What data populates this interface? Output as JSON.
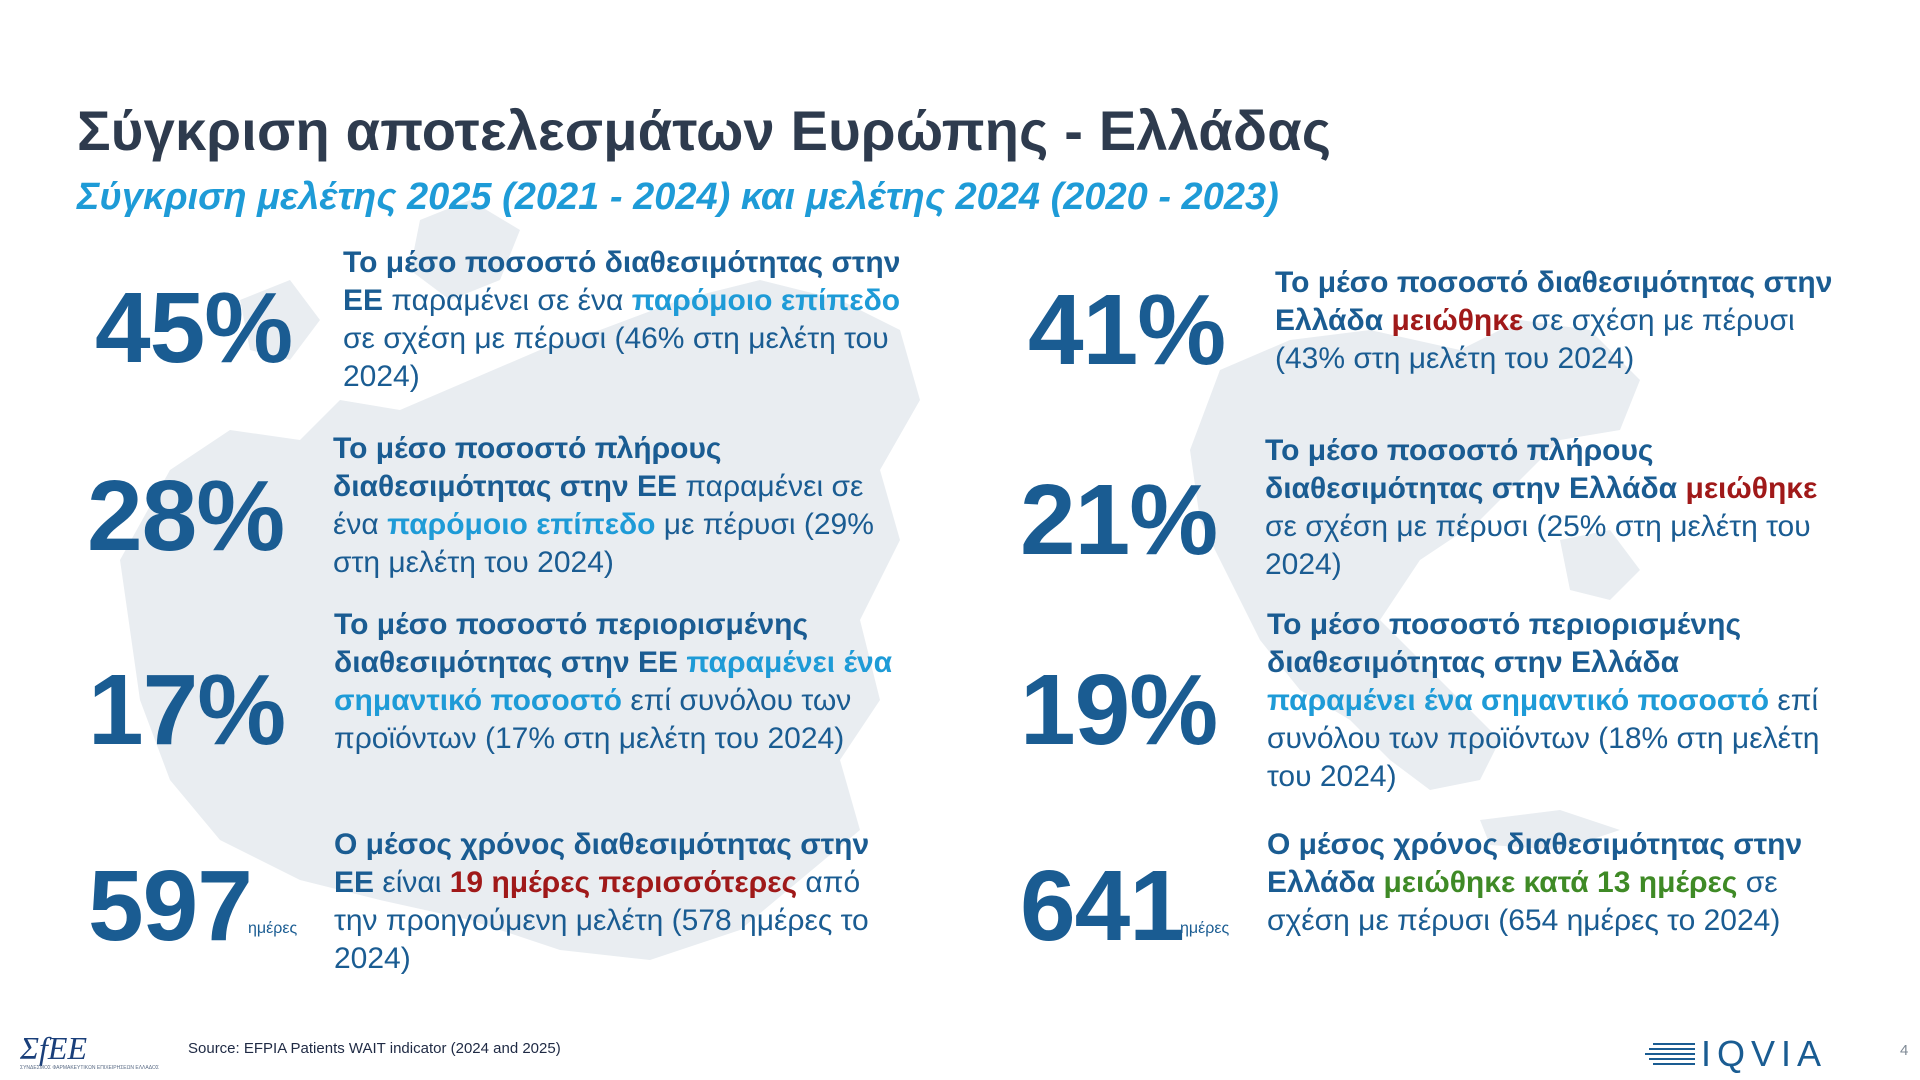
{
  "slide": {
    "title": "Σύγκριση αποτελεσμάτων Ευρώπης - Ελλάδας",
    "subtitle": "Σύγκριση μελέτης 2025 (2021 - 2024) και μελέτης 2024 (2020 - 2023)"
  },
  "left": [
    {
      "value": "45%",
      "unit": "",
      "segments": [
        {
          "text": "Το μέσο ποσοστό διαθεσιμότητας στην ΕΕ",
          "style": "bold"
        },
        {
          "text": " παραμένει σε ένα ",
          "style": "normal"
        },
        {
          "text": "παρόμοιο επίπεδο",
          "style": "cyan"
        },
        {
          "text": " σε σχέση με πέρυσι (46% στη μελέτη του 2024)",
          "style": "normal"
        }
      ]
    },
    {
      "value": "28%",
      "unit": "",
      "segments": [
        {
          "text": "Το μέσο ποσοστό πλήρους διαθεσιμότητας στην ΕΕ",
          "style": "bold"
        },
        {
          "text": " παραμένει σε ένα ",
          "style": "normal"
        },
        {
          "text": "παρόμοιο επίπεδο",
          "style": "cyan"
        },
        {
          "text": " με πέρυσι (29% στη μελέτη του 2024)",
          "style": "normal"
        }
      ]
    },
    {
      "value": "17%",
      "unit": "",
      "segments": [
        {
          "text": "Το μέσο ποσοστό περιορισμένης διαθεσιμότητας στην ΕΕ",
          "style": "bold"
        },
        {
          "text": " ",
          "style": "normal"
        },
        {
          "text": "παραμένει ένα σημαντικό ποσοστό",
          "style": "cyan"
        },
        {
          "text": " επί συνόλου των προϊόντων (17% στη μελέτη του 2024)",
          "style": "normal"
        }
      ]
    },
    {
      "value": "597",
      "unit": "ημέρες",
      "segments": [
        {
          "text": "Ο μέσος χρόνος διαθεσιμότητας στην ΕΕ",
          "style": "bold"
        },
        {
          "text": " είναι ",
          "style": "normal"
        },
        {
          "text": "19 ημέρες περισσότερες",
          "style": "red"
        },
        {
          "text": " από την προηγούμενη μελέτη (578 ημέρες το 2024)",
          "style": "normal"
        }
      ]
    }
  ],
  "right": [
    {
      "value": "41%",
      "unit": "",
      "segments": [
        {
          "text": "Το μέσο ποσοστό διαθεσιμότητας στην Ελλάδα",
          "style": "bold"
        },
        {
          "text": " ",
          "style": "normal"
        },
        {
          "text": "μειώθηκε",
          "style": "red"
        },
        {
          "text": " σε σχέση με πέρυσι (43% στη μελέτη του 2024)",
          "style": "normal"
        }
      ]
    },
    {
      "value": "21%",
      "unit": "",
      "segments": [
        {
          "text": "Το μέσο ποσοστό πλήρους διαθεσιμότητας στην Ελλάδα",
          "style": "bold"
        },
        {
          "text": " ",
          "style": "normal"
        },
        {
          "text": "μειώθηκε",
          "style": "red"
        },
        {
          "text": " σε σχέση με πέρυσι (25% στη μελέτη του 2024)",
          "style": "normal"
        }
      ]
    },
    {
      "value": "19%",
      "unit": "",
      "segments": [
        {
          "text": "Το μέσο ποσοστό περιορισμένης διαθεσιμότητας στην Ελλάδα",
          "style": "bold"
        },
        {
          "text": " ",
          "style": "normal"
        },
        {
          "text": "παραμένει ένα σημαντικό ποσοστό",
          "style": "cyan"
        },
        {
          "text": " επί συνόλου των προϊόντων (18% στη μελέτη του 2024)",
          "style": "normal"
        }
      ]
    },
    {
      "value": "641",
      "unit": "ημέρες",
      "segments": [
        {
          "text": "Ο μέσος χρόνος διαθεσιμότητας στην Ελλάδα",
          "style": "bold"
        },
        {
          "text": " ",
          "style": "normal"
        },
        {
          "text": "μειώθηκε κατά 13 ημέρες",
          "style": "green"
        },
        {
          "text": " σε σχέση με πέρυσι (654 ημέρες το 2024)",
          "style": "normal"
        }
      ]
    }
  ],
  "footer": {
    "source": "Source: EFPIA Patients WAIT indicator (2024 and 2025)",
    "logo_left": "ΣfEE",
    "logo_left_tagline": "ΣΥΝΔΕΣΜΟΣ ΦΑΡΜΑΚΕΥΤΙΚΩΝ ΕΠΙΧΕΙΡΗΣΕΩΝ ΕΛΛΑΔΟΣ",
    "logo_right": "IQVIA",
    "page_number": "4"
  },
  "colors": {
    "title": "#2e3b4e",
    "subtitle": "#1e9bd7",
    "numbers": "#1a5c92",
    "highlight_cyan": "#1e9bd7",
    "highlight_red": "#a01919",
    "highlight_green": "#3f8a26",
    "map": "#e6eaef"
  }
}
